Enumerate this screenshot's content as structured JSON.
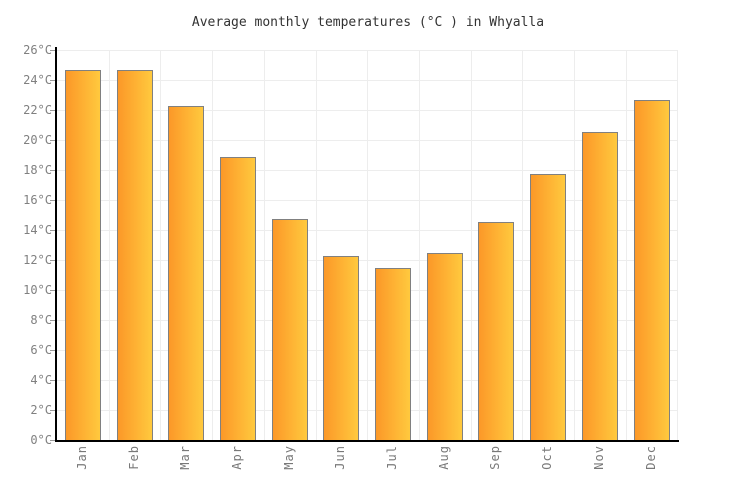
{
  "title": "Average monthly temperatures (°C ) in Whyalla",
  "chart_data": {
    "type": "bar",
    "title": "Average monthly temperatures (°C ) in Whyalla",
    "categories": [
      "Jan",
      "Feb",
      "Mar",
      "Apr",
      "May",
      "Jun",
      "Jul",
      "Aug",
      "Sep",
      "Oct",
      "Nov",
      "Dec"
    ],
    "values": [
      24.6,
      24.6,
      22.2,
      18.8,
      14.7,
      12.2,
      11.4,
      12.4,
      14.5,
      17.7,
      20.5,
      22.6
    ],
    "unit": "°C",
    "xlabel": "",
    "ylabel": "",
    "ylim": [
      0,
      26
    ],
    "ytick_step": 2,
    "ytick_values": [
      0,
      2,
      4,
      6,
      8,
      10,
      12,
      14,
      16,
      18,
      20,
      22,
      24,
      26
    ],
    "ytick_labels": [
      "0°C",
      "2°C",
      "4°C",
      "6°C",
      "8°C",
      "10°C",
      "12°C",
      "14°C",
      "16°C",
      "18°C",
      "20°C",
      "22°C",
      "24°C",
      "26°C"
    ],
    "grid": true,
    "legend": "none",
    "colors": {
      "bar_gradient_left": "#fc9828",
      "bar_gradient_right": "#ffc93e",
      "bar_border": "#808080",
      "gridline": "#ededed",
      "axis": "#000000",
      "tick_label": "#808080",
      "title": "#333333",
      "background": "#ffffff"
    }
  }
}
